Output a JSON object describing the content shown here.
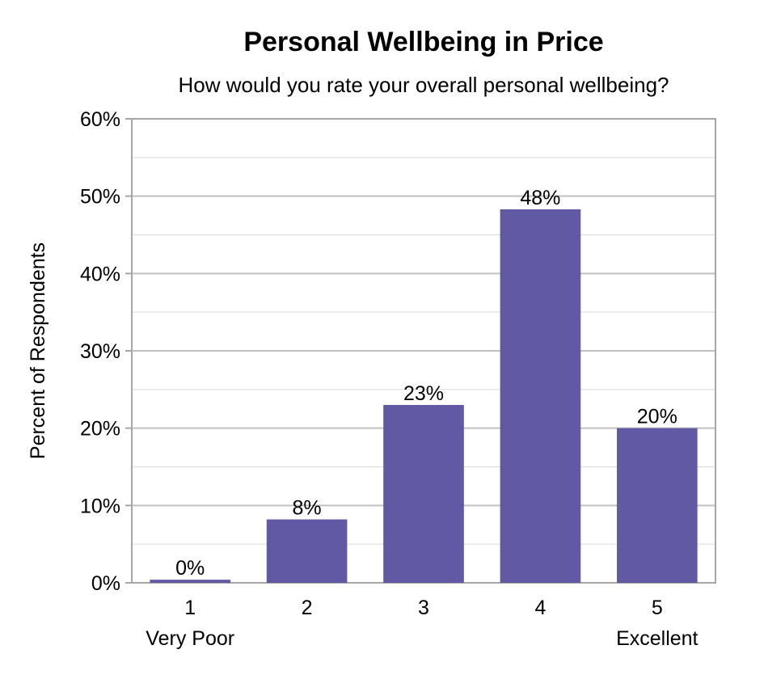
{
  "chart_data": {
    "type": "bar",
    "title": "Personal Wellbeing in Price",
    "subtitle": "How would you rate your overall personal wellbeing?",
    "xlabel": "",
    "ylabel": "Percent of Respondents",
    "categories": [
      "1",
      "2",
      "3",
      "4",
      "5"
    ],
    "category_sublabels": [
      "Very Poor",
      "",
      "",
      "",
      "Excellent"
    ],
    "values": [
      0.4,
      8.2,
      23.0,
      48.3,
      20.0
    ],
    "data_labels": [
      "0%",
      "8%",
      "23%",
      "48%",
      "20%"
    ],
    "ylim": [
      0,
      60
    ],
    "yticks": [
      0,
      10,
      20,
      30,
      40,
      50,
      60
    ],
    "ytick_labels": [
      "0%",
      "10%",
      "20%",
      "30%",
      "40%",
      "50%",
      "60%"
    ],
    "minor_gridlines": true,
    "grid": true,
    "legend": "none",
    "bar_color": "#6159a3",
    "grid_color": "#c0c0c0",
    "minor_grid_color": "#d9d9d9"
  }
}
